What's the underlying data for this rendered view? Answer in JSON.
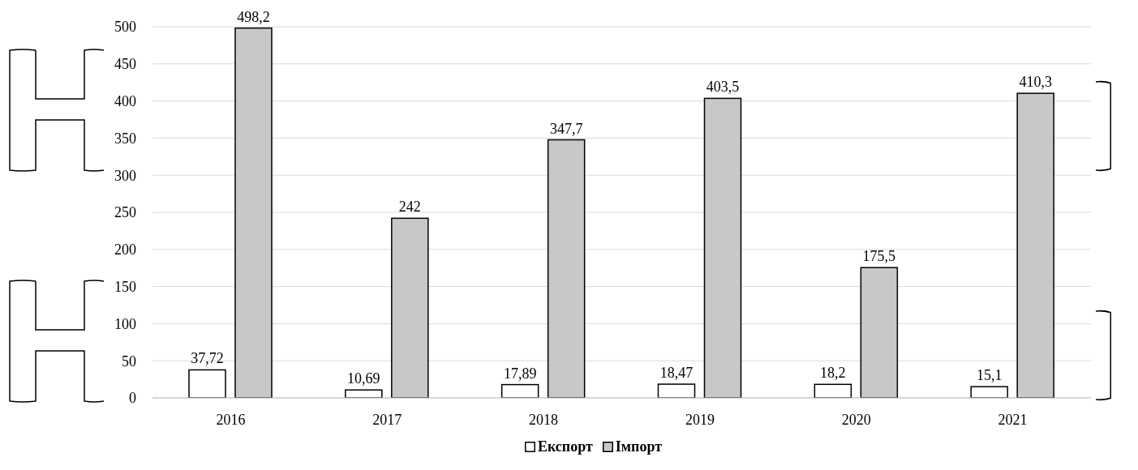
{
  "chart_data": {
    "type": "bar",
    "categories": [
      "2016",
      "2017",
      "2018",
      "2019",
      "2020",
      "2021"
    ],
    "series": [
      {
        "name": "Експорт",
        "color": "#ffffff",
        "values": [
          37.72,
          10.69,
          17.89,
          18.47,
          18.2,
          15.1
        ],
        "value_labels": [
          "37,72",
          "10,69",
          "17,89",
          "18,47",
          "18,2",
          "15,1"
        ]
      },
      {
        "name": "Імпорт",
        "color": "#c8c8c8",
        "values": [
          498.2,
          242,
          347.7,
          403.5,
          175.5,
          410.3
        ],
        "value_labels": [
          "498,2",
          "242",
          "347,7",
          "403,5",
          "175,5",
          "410,3"
        ]
      }
    ],
    "ylim": [
      0,
      500
    ],
    "yticks": [
      0,
      50,
      100,
      150,
      200,
      250,
      300,
      350,
      400,
      450,
      500
    ],
    "grid": "y",
    "legend": "bottom"
  }
}
